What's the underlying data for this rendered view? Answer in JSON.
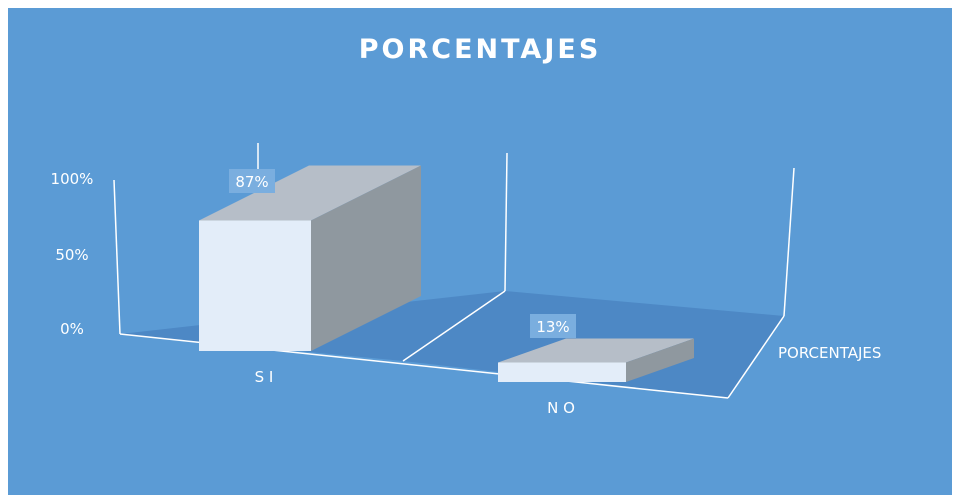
{
  "chart_data": {
    "type": "bar",
    "title": "PORCENTAJES",
    "categories": [
      "S I",
      "N O"
    ],
    "series": [
      {
        "name": "PORCENTAJES",
        "values": [
          87,
          13
        ]
      }
    ],
    "data_labels": [
      "87%",
      "13%"
    ],
    "y_ticks": [
      "0%",
      "50%",
      "100%"
    ],
    "ylim": [
      0,
      100
    ],
    "style": "3d-column",
    "colors": {
      "background": "#5b9bd5",
      "floor": "#4d88c5",
      "bar_front": "#e3edf9",
      "bar_top": "#b6bec8",
      "bar_side": "#8f989f",
      "label_box": "#7aaedf",
      "text": "#ffffff"
    }
  }
}
